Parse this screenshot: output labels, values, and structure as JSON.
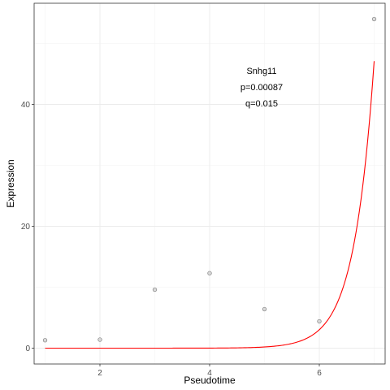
{
  "chart_data": {
    "type": "scatter",
    "xlabel": "Pseudotime",
    "ylabel": "Expression",
    "xlim": [
      0.8,
      7.2
    ],
    "ylim": [
      -2.6,
      56.6
    ],
    "x_ticks": [
      2,
      4,
      6
    ],
    "y_ticks": [
      0,
      20,
      40
    ],
    "grid": true,
    "points": [
      {
        "x": 1,
        "y": 1.3
      },
      {
        "x": 2,
        "y": 1.4
      },
      {
        "x": 3,
        "y": 9.6
      },
      {
        "x": 4,
        "y": 12.3
      },
      {
        "x": 5,
        "y": 6.4
      },
      {
        "x": 6,
        "y": 4.4
      },
      {
        "x": 7,
        "y": 54.0
      }
    ],
    "fit_curve": {
      "color": "#ff0000",
      "model": "exponential",
      "a": 2.13e-07,
      "b": 2.7449,
      "x_range": [
        1,
        7
      ]
    },
    "point_color": "#808080",
    "annotations": [
      "Snhg11",
      "p=0.00087",
      "q=0.015"
    ]
  }
}
